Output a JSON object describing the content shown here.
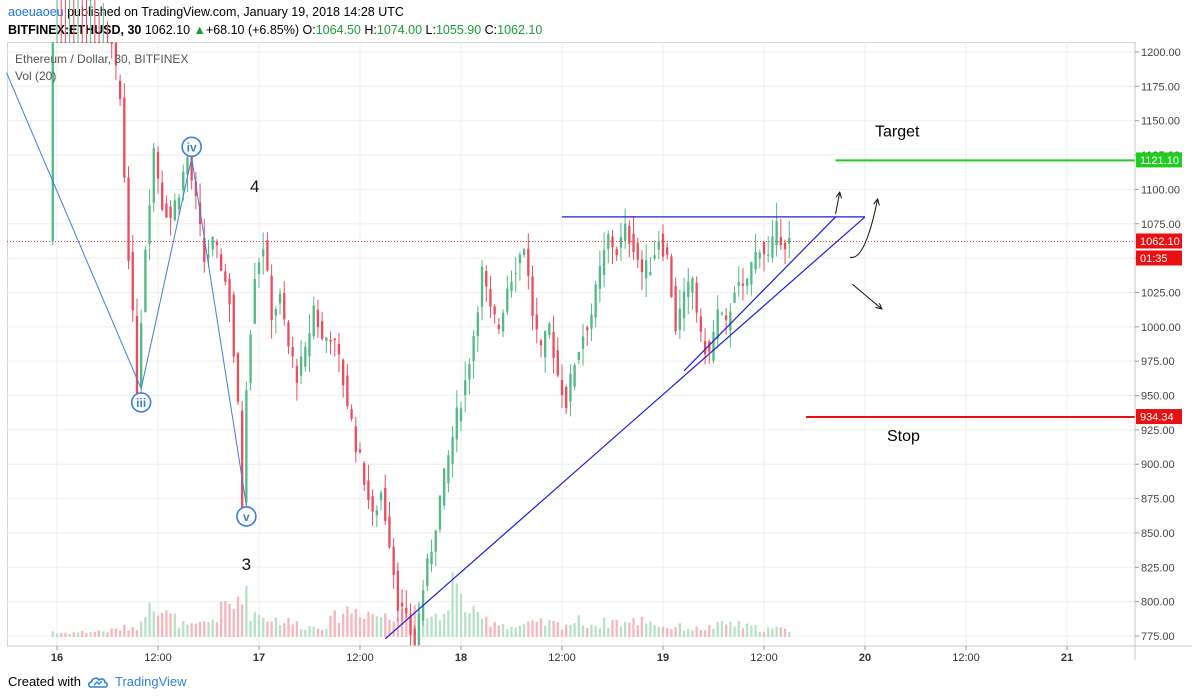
{
  "header": {
    "author": "aoeuaoeu",
    "published_text": " published on TradingView.com, January 19, 2018 14:28 UTC",
    "symbol": "BITFINEX:ETHUSD, 30",
    "last": "1062.10",
    "change_arrow": "▲",
    "change": "+68.10 (+6.85%)",
    "o_label": "O:",
    "o_val": "1064.50",
    "h_label": "H:",
    "h_val": "1074.00",
    "l_label": "L:",
    "l_val": "1055.90",
    "c_label": "C:",
    "c_val": "1062.10"
  },
  "legend": {
    "title": "Ethereum / Dollar, 30, BITFINEX",
    "volume": "Vol (20)"
  },
  "footer": {
    "created_with": "Created with",
    "brand": "TradingView"
  },
  "colors": {
    "up": "#53b987",
    "down": "#eb4d5c",
    "vol_up": "#b7e2c8",
    "vol_down": "#f5b7bd",
    "wave": "#3e7fd8",
    "trend": "#1e1ed8",
    "target": "#22cc22",
    "stop": "#e81010",
    "price_line": "#e04040"
  },
  "chart_data": {
    "type": "candlestick",
    "symbol": "BITFINEX:ETHUSD",
    "interval": "30",
    "ylim": [
      765,
      1210
    ],
    "y_ticks": [
      1200,
      1175,
      1150,
      1125,
      1100,
      1075,
      1050,
      1025,
      1000,
      975,
      950,
      925,
      900,
      875,
      850,
      825,
      800,
      775
    ],
    "x_ticks": [
      {
        "label": "16",
        "t": 0
      },
      {
        "label": "12:00",
        "t": 12
      },
      {
        "label": "17",
        "t": 24
      },
      {
        "label": "12:00",
        "t": 36
      },
      {
        "label": "18",
        "t": 48
      },
      {
        "label": "12:00",
        "t": 60
      },
      {
        "label": "19",
        "t": 72
      },
      {
        "label": "12:00",
        "t": 84
      },
      {
        "label": "20",
        "t": 96
      },
      {
        "label": "12:00",
        "t": 108
      },
      {
        "label": "21",
        "t": 120
      }
    ],
    "t_range": [
      -6,
      128
    ],
    "last_price": 1062.1,
    "last_price_label": "1062.10",
    "countdown_label": "01:35",
    "target": {
      "label": "Target",
      "price": 1121.1,
      "price_label": "1121.10",
      "t_start": 92.5
    },
    "stop": {
      "label": "Stop",
      "price": 934.34,
      "price_label": "934.34",
      "t_start": 89
    },
    "wave_labels": [
      {
        "label": "iii",
        "t": 10,
        "price": 945
      },
      {
        "label": "iv",
        "t": 16,
        "price": 1131
      },
      {
        "label": "v",
        "t": 22.5,
        "price": 862
      }
    ],
    "wave_path": [
      [
        -6,
        1185
      ],
      [
        10,
        955
      ],
      [
        16,
        1123
      ],
      [
        22.5,
        870
      ]
    ],
    "annotations": [
      {
        "label": "4",
        "t": 23.5,
        "price": 1098
      },
      {
        "label": "3",
        "t": 22.5,
        "price": 823
      }
    ],
    "trend_lines": [
      {
        "from": [
          39,
          773
        ],
        "to": [
          96,
          1080
        ]
      },
      {
        "from": [
          60,
          1080
        ],
        "to": [
          96,
          1080
        ]
      },
      {
        "from": [
          74.5,
          968
        ],
        "to": [
          92.5,
          1080
        ]
      }
    ],
    "arrows": [
      {
        "from": [
          92.5,
          1082
        ],
        "to": [
          93,
          1098
        ]
      },
      {
        "from": [
          96,
          1055
        ],
        "to": [
          97.5,
          1093
        ]
      },
      {
        "from": [
          94.5,
          1031
        ],
        "to": [
          98,
          1013
        ]
      }
    ],
    "keypoints": [
      [
        0,
        1260
      ],
      [
        3,
        1265
      ],
      [
        6,
        1240
      ],
      [
        8,
        1165
      ],
      [
        9,
        1055
      ],
      [
        10,
        955
      ],
      [
        11,
        1060
      ],
      [
        12,
        1130
      ],
      [
        13,
        1090
      ],
      [
        14,
        1080
      ],
      [
        15,
        1100
      ],
      [
        16,
        1123
      ],
      [
        17,
        1090
      ],
      [
        18,
        1048
      ],
      [
        19,
        1060
      ],
      [
        20,
        1045
      ],
      [
        21,
        1020
      ],
      [
        22,
        940
      ],
      [
        22.5,
        870
      ],
      [
        23,
        960
      ],
      [
        24,
        1040
      ],
      [
        25,
        1060
      ],
      [
        26,
        1010
      ],
      [
        27,
        1020
      ],
      [
        28,
        985
      ],
      [
        29,
        965
      ],
      [
        30,
        980
      ],
      [
        31,
        1015
      ],
      [
        32,
        990
      ],
      [
        33,
        995
      ],
      [
        34,
        975
      ],
      [
        35,
        945
      ],
      [
        36,
        915
      ],
      [
        37,
        890
      ],
      [
        38,
        860
      ],
      [
        39,
        880
      ],
      [
        40,
        845
      ],
      [
        41,
        800
      ],
      [
        42,
        785
      ],
      [
        43,
        770
      ],
      [
        44,
        810
      ],
      [
        45,
        840
      ],
      [
        46,
        875
      ],
      [
        47,
        905
      ],
      [
        48,
        935
      ],
      [
        49,
        960
      ],
      [
        50,
        995
      ],
      [
        51,
        1040
      ],
      [
        52,
        1010
      ],
      [
        53,
        1000
      ],
      [
        54,
        1030
      ],
      [
        55,
        1045
      ],
      [
        56,
        1060
      ],
      [
        57,
        1010
      ],
      [
        58,
        980
      ],
      [
        59,
        1000
      ],
      [
        60,
        965
      ],
      [
        61,
        945
      ],
      [
        62,
        975
      ],
      [
        63,
        995
      ],
      [
        64,
        1010
      ],
      [
        65,
        1040
      ],
      [
        66,
        1065
      ],
      [
        67,
        1055
      ],
      [
        68,
        1070
      ],
      [
        69,
        1060
      ],
      [
        70,
        1040
      ],
      [
        71,
        1045
      ],
      [
        72,
        1065
      ],
      [
        73,
        1050
      ],
      [
        74,
        1000
      ],
      [
        75,
        1020
      ],
      [
        76,
        1035
      ],
      [
        77,
        990
      ],
      [
        78,
        980
      ],
      [
        79,
        1010
      ],
      [
        80,
        1000
      ],
      [
        81,
        1030
      ],
      [
        82,
        1025
      ],
      [
        83,
        1045
      ],
      [
        84,
        1060
      ],
      [
        85,
        1050
      ],
      [
        86,
        1070
      ],
      [
        87,
        1062
      ]
    ],
    "volume_profile": [
      [
        0,
        4
      ],
      [
        6,
        6
      ],
      [
        10,
        12
      ],
      [
        11,
        48
      ],
      [
        12,
        30
      ],
      [
        13,
        22
      ],
      [
        14,
        18
      ],
      [
        15,
        12
      ],
      [
        16,
        10
      ],
      [
        17,
        12
      ],
      [
        18,
        16
      ],
      [
        19,
        20
      ],
      [
        20,
        32
      ],
      [
        21,
        30
      ],
      [
        22,
        52
      ],
      [
        23,
        26
      ],
      [
        24,
        22
      ],
      [
        26,
        18
      ],
      [
        28,
        14
      ],
      [
        30,
        10
      ],
      [
        32,
        12
      ],
      [
        34,
        26
      ],
      [
        36,
        28
      ],
      [
        38,
        22
      ],
      [
        40,
        18
      ],
      [
        41,
        42
      ],
      [
        42,
        26
      ],
      [
        43,
        34
      ],
      [
        44,
        14
      ],
      [
        46,
        22
      ],
      [
        47,
        56
      ],
      [
        48,
        36
      ],
      [
        50,
        18
      ],
      [
        52,
        16
      ],
      [
        54,
        10
      ],
      [
        56,
        12
      ],
      [
        58,
        14
      ],
      [
        60,
        12
      ],
      [
        62,
        16
      ],
      [
        64,
        12
      ],
      [
        66,
        16
      ],
      [
        68,
        14
      ],
      [
        70,
        18
      ],
      [
        72,
        10
      ],
      [
        74,
        10
      ],
      [
        76,
        8
      ],
      [
        78,
        10
      ],
      [
        80,
        14
      ],
      [
        82,
        10
      ],
      [
        84,
        8
      ],
      [
        86,
        8
      ],
      [
        87,
        6
      ]
    ]
  }
}
